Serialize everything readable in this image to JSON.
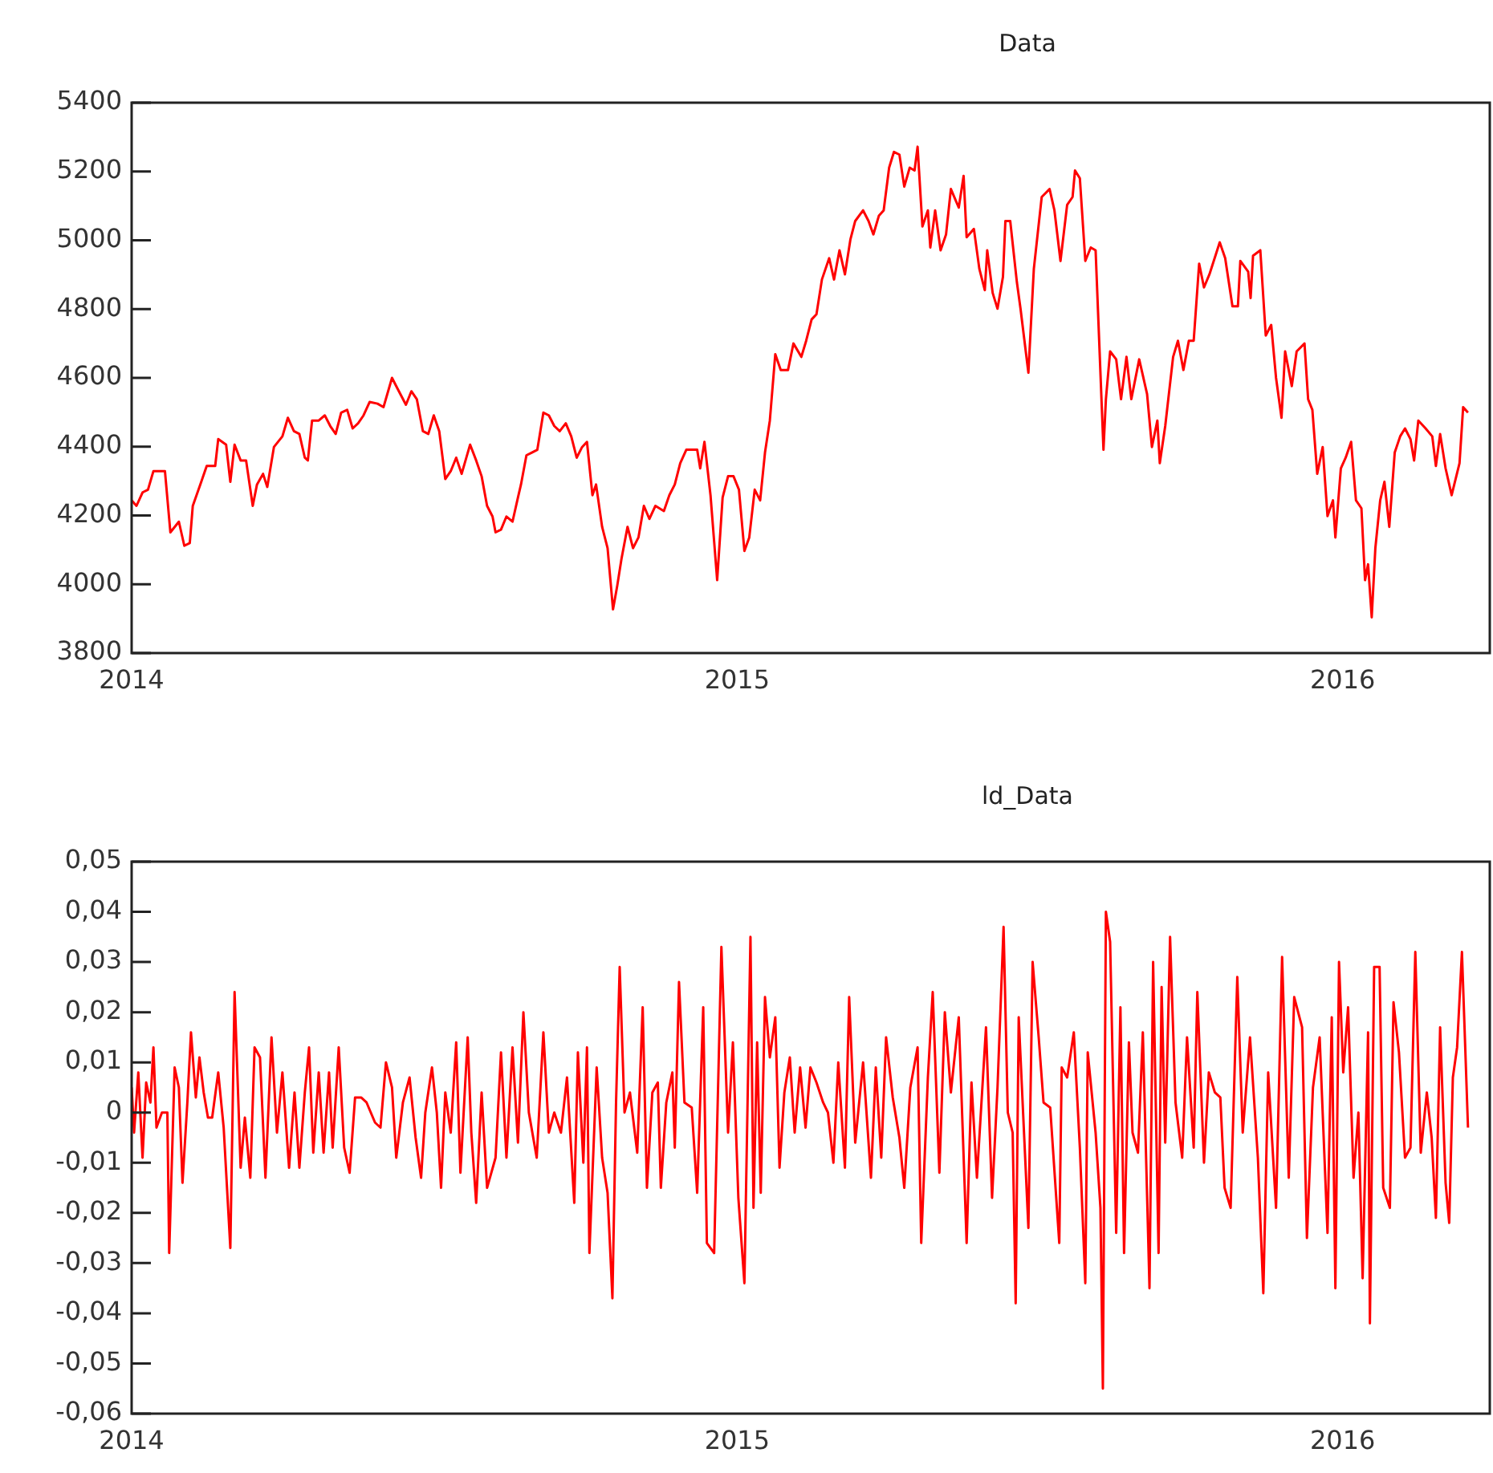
{
  "chart_data": [
    {
      "type": "line",
      "title": "Data",
      "xlim": [
        2014,
        2016.243
      ],
      "xticks": [
        2014,
        2015,
        2016
      ],
      "ylim": [
        3800,
        5400
      ],
      "yticks": [
        3800,
        4000,
        4200,
        4400,
        4600,
        4800,
        5000,
        5200,
        5400
      ],
      "x": [
        2014.0,
        2014.008,
        2014.018,
        2014.027,
        2014.036,
        2014.055,
        2014.064,
        2014.078,
        2014.087,
        2014.096,
        2014.101,
        2014.115,
        2014.124,
        2014.138,
        2014.143,
        2014.156,
        2014.163,
        2014.17,
        2014.18,
        2014.189,
        2014.2,
        2014.207,
        2014.217,
        2014.224,
        2014.235,
        2014.249,
        2014.258,
        2014.268,
        2014.277,
        2014.286,
        2014.291,
        2014.298,
        2014.309,
        2014.319,
        2014.328,
        2014.337,
        2014.346,
        2014.356,
        2014.365,
        2014.374,
        2014.383,
        2014.393,
        2014.406,
        2014.416,
        2014.43,
        2014.439,
        2014.453,
        2014.462,
        2014.471,
        2014.481,
        2014.49,
        2014.499,
        2014.508,
        2014.518,
        2014.527,
        2014.536,
        2014.545,
        2014.559,
        2014.569,
        2014.578,
        2014.587,
        2014.596,
        2014.601,
        2014.61,
        2014.619,
        2014.629,
        2014.638,
        2014.643,
        2014.652,
        2014.661,
        2014.67,
        2014.68,
        2014.689,
        2014.698,
        2014.707,
        2014.717,
        2014.726,
        2014.735,
        2014.744,
        2014.752,
        2014.761,
        2014.767,
        2014.777,
        2014.786,
        2014.795,
        2014.802,
        2014.809,
        2014.819,
        2014.828,
        2014.837,
        2014.846,
        2014.855,
        2014.865,
        2014.879,
        2014.888,
        2014.897,
        2014.906,
        2014.916,
        2014.934,
        2014.939,
        2014.946,
        2014.956,
        2014.967,
        2014.976,
        2014.985,
        2014.994,
        2015.003,
        2015.012,
        2015.02,
        2015.029,
        2015.038,
        2015.046,
        2015.054,
        2015.063,
        2015.072,
        2015.084,
        2015.093,
        2015.106,
        2015.114,
        2015.123,
        2015.131,
        2015.14,
        2015.152,
        2015.16,
        2015.169,
        2015.178,
        2015.187,
        2015.195,
        2015.208,
        2015.217,
        2015.225,
        2015.234,
        2015.242,
        2015.251,
        2015.259,
        2015.268,
        2015.276,
        2015.285,
        2015.293,
        2015.298,
        2015.306,
        2015.315,
        2015.319,
        2015.327,
        2015.336,
        2015.345,
        2015.353,
        2015.366,
        2015.374,
        2015.379,
        2015.391,
        2015.4,
        2015.409,
        2015.413,
        2015.422,
        2015.43,
        2015.439,
        2015.443,
        2015.451,
        2015.462,
        2015.468,
        2015.481,
        2015.49,
        2015.503,
        2015.516,
        2015.524,
        2015.534,
        2015.545,
        2015.554,
        2015.558,
        2015.566,
        2015.575,
        2015.584,
        2015.592,
        2015.605,
        2015.609,
        2015.616,
        2015.626,
        2015.634,
        2015.643,
        2015.651,
        2015.664,
        2015.677,
        2015.685,
        2015.694,
        2015.698,
        2015.707,
        2015.72,
        2015.728,
        2015.737,
        2015.746,
        2015.754,
        2015.763,
        2015.771,
        2015.78,
        2015.797,
        2015.806,
        2015.818,
        2015.827,
        2015.831,
        2015.844,
        2015.848,
        2015.852,
        2015.864,
        2015.873,
        2015.882,
        2015.89,
        2015.899,
        2015.905,
        2015.916,
        2015.924,
        2015.937,
        2015.943,
        2015.95,
        2015.958,
        2015.967,
        2015.975,
        2015.984,
        2015.988,
        2015.997,
        2016.005,
        2016.014,
        2016.022,
        2016.031,
        2016.037,
        2016.042,
        2016.048,
        2016.054,
        2016.062,
        2016.069,
        2016.077,
        2016.086,
        2016.095,
        2016.103,
        2016.112,
        2016.118,
        2016.125,
        2016.137,
        2016.148,
        2016.154,
        2016.161,
        2016.17,
        2016.18,
        2016.193,
        2016.199,
        2016.207
      ],
      "series": [
        {
          "color": "#ff0000",
          "values": [
            4244,
            4228,
            4267,
            4275,
            4329,
            4329,
            4151,
            4182,
            4112,
            4120,
            4228,
            4298,
            4344,
            4344,
            4422,
            4406,
            4298,
            4406,
            4360,
            4360,
            4228,
            4290,
            4321,
            4283,
            4399,
            4430,
            4484,
            4445,
            4437,
            4368,
            4360,
            4476,
            4476,
            4491,
            4460,
            4437,
            4499,
            4507,
            4453,
            4468,
            4491,
            4530,
            4525,
            4515,
            4600,
            4569,
            4522,
            4561,
            4538,
            4445,
            4437,
            4491,
            4445,
            4306,
            4329,
            4368,
            4321,
            4406,
            4360,
            4314,
            4228,
            4197,
            4151,
            4159,
            4197,
            4182,
            4252,
            4290,
            4375,
            4383,
            4391,
            4499,
            4491,
            4460,
            4445,
            4468,
            4430,
            4368,
            4399,
            4414,
            4259,
            4290,
            4167,
            4105,
            3927,
            3996,
            4074,
            4167,
            4105,
            4136,
            4228,
            4190,
            4228,
            4213,
            4259,
            4290,
            4352,
            4391,
            4391,
            4337,
            4414,
            4259,
            4012,
            4252,
            4314,
            4314,
            4275,
            4097,
            4136,
            4275,
            4244,
            4383,
            4476,
            4669,
            4623,
            4623,
            4700,
            4661,
            4708,
            4770,
            4785,
            4886,
            4948,
            4886,
            4971,
            4901,
            5002,
            5056,
            5087,
            5056,
            5017,
            5071,
            5087,
            5211,
            5257,
            5249,
            5156,
            5211,
            5203,
            5272,
            5040,
            5087,
            4979,
            5087,
            4971,
            5017,
            5149,
            5095,
            5187,
            5009,
            5033,
            4917,
            4855,
            4971,
            4847,
            4801,
            4894,
            5056,
            5056,
            4878,
            4801,
            4615,
            4917,
            5126,
            5149,
            5087,
            4940,
            5103,
            5126,
            5203,
            5180,
            4940,
            4979,
            4971,
            4391,
            4538,
            4677,
            4654,
            4538,
            4661,
            4538,
            4654,
            4553,
            4399,
            4476,
            4352,
            4460,
            4661,
            4708,
            4623,
            4708,
            4708,
            4932,
            4863,
            4901,
            4994,
            4948,
            4808,
            4808,
            4940,
            4909,
            4832,
            4955,
            4971,
            4723,
            4754,
            4600,
            4484,
            4677,
            4576,
            4677,
            4700,
            4538,
            4507,
            4321,
            4399,
            4198,
            4244,
            4136,
            4337,
            4368,
            4414,
            4244,
            4221,
            4012,
            4058,
            3904,
            4105,
            4244,
            4298,
            4167,
            4383,
            4430,
            4453,
            4422,
            4360,
            4476,
            4453,
            4430,
            4344,
            4437,
            4337,
            4259,
            4352,
            4515,
            4499
          ]
        }
      ]
    },
    {
      "type": "line",
      "title": "ld_Data",
      "xlim": [
        2014,
        2016.243
      ],
      "xticks": [
        2014,
        2015,
        2016
      ],
      "ylim": [
        -0.06,
        0.05
      ],
      "yticks": [
        {
          "value": -0.06,
          "label": "-0,06"
        },
        {
          "value": -0.05,
          "label": "-0,05"
        },
        {
          "value": -0.04,
          "label": "-0,04"
        },
        {
          "value": -0.03,
          "label": "-0,03"
        },
        {
          "value": -0.02,
          "label": "-0,02"
        },
        {
          "value": -0.01,
          "label": "-0,01"
        },
        0,
        {
          "value": 0.01,
          "label": "0,01"
        },
        {
          "value": 0.02,
          "label": "0,02"
        },
        {
          "value": 0.03,
          "label": "0,03"
        },
        {
          "value": 0.04,
          "label": "0,04"
        },
        {
          "value": 0.05,
          "label": "0,05"
        }
      ],
      "x": [
        2014.0,
        2014.004,
        2014.011,
        2014.018,
        2014.024,
        2014.031,
        2014.036,
        2014.041,
        2014.05,
        2014.059,
        2014.062,
        2014.071,
        2014.078,
        2014.084,
        2014.092,
        2014.098,
        2014.106,
        2014.112,
        2014.119,
        2014.126,
        2014.133,
        2014.143,
        2014.152,
        2014.163,
        2014.17,
        2014.18,
        2014.187,
        2014.196,
        2014.203,
        2014.212,
        2014.221,
        2014.231,
        2014.24,
        2014.249,
        2014.26,
        2014.269,
        2014.277,
        2014.286,
        2014.293,
        2014.3,
        2014.309,
        2014.317,
        2014.326,
        2014.332,
        2014.342,
        2014.351,
        2014.36,
        2014.369,
        2014.379,
        2014.388,
        2014.402,
        2014.411,
        2014.42,
        2014.43,
        2014.437,
        2014.448,
        2014.459,
        2014.469,
        2014.478,
        2014.485,
        2014.496,
        2014.504,
        2014.511,
        2014.518,
        2014.527,
        2014.536,
        2014.543,
        2014.555,
        2014.561,
        2014.569,
        2014.578,
        2014.587,
        2014.601,
        2014.61,
        2014.619,
        2014.629,
        2014.638,
        2014.647,
        2014.656,
        2014.669,
        2014.68,
        2014.689,
        2014.698,
        2014.709,
        2014.719,
        2014.731,
        2014.737,
        2014.746,
        2014.752,
        2014.756,
        2014.768,
        2014.777,
        2014.786,
        2014.794,
        2014.8,
        2014.806,
        2014.814,
        2014.823,
        2014.835,
        2014.844,
        2014.851,
        2014.86,
        2014.869,
        2014.874,
        2014.883,
        2014.893,
        2014.897,
        2014.904,
        2014.913,
        2014.925,
        2014.934,
        2014.944,
        2014.95,
        2014.962,
        2014.974,
        2014.985,
        2014.993,
        2015.002,
        2015.012,
        2015.022,
        2015.027,
        2015.033,
        2015.039,
        2015.046,
        2015.054,
        2015.055,
        2015.063,
        2015.07,
        2015.078,
        2015.087,
        2015.095,
        2015.104,
        2015.113,
        2015.121,
        2015.131,
        2015.142,
        2015.15,
        2015.159,
        2015.167,
        2015.178,
        2015.185,
        2015.195,
        2015.208,
        2015.221,
        2015.229,
        2015.238,
        2015.246,
        2015.257,
        2015.268,
        2015.276,
        2015.286,
        2015.298,
        2015.304,
        2015.315,
        2015.323,
        2015.334,
        2015.343,
        2015.353,
        2015.366,
        2015.379,
        2015.387,
        2015.396,
        2015.411,
        2015.421,
        2015.43,
        2015.44,
        2015.447,
        2015.455,
        2015.46,
        2015.465,
        2015.481,
        2015.488,
        2015.498,
        2015.506,
        2015.517,
        2015.532,
        2015.536,
        2015.545,
        2015.556,
        2015.566,
        2015.575,
        2015.579,
        2015.592,
        2015.6,
        2015.604,
        2015.609,
        2015.616,
        2015.626,
        2015.633,
        2015.639,
        2015.647,
        2015.653,
        2015.662,
        2015.67,
        2015.681,
        2015.687,
        2015.696,
        2015.701,
        2015.707,
        2015.715,
        2015.724,
        2015.735,
        2015.743,
        2015.754,
        2015.76,
        2015.771,
        2015.779,
        2015.789,
        2015.798,
        2015.805,
        2015.815,
        2015.826,
        2015.835,
        2015.847,
        2015.86,
        2015.869,
        2015.877,
        2015.89,
        2015.9,
        2015.911,
        2015.92,
        2015.933,
        2015.941,
        2015.951,
        2015.962,
        2015.975,
        2015.982,
        2015.988,
        2015.994,
        2016.001,
        2016.009,
        2016.018,
        2016.026,
        2016.033,
        2016.042,
        2016.045,
        2016.052,
        2016.061,
        2016.067,
        2016.078,
        2016.084,
        2016.093,
        2016.103,
        2016.112,
        2016.12,
        2016.129,
        2016.139,
        2016.147,
        2016.154,
        2016.161,
        2016.17,
        2016.176,
        2016.182,
        2016.189,
        2016.197,
        2016.207
      ],
      "series": [
        {
          "color": "#ff0000",
          "values": [
            0.005,
            -0.004,
            0.008,
            -0.009,
            0.006,
            0.002,
            0.013,
            -0.003,
            0,
            0,
            -0.028,
            0.009,
            0.005,
            -0.014,
            0.002,
            0.016,
            0.003,
            0.011,
            0.004,
            -0.001,
            -0.001,
            0.008,
            -0.003,
            -0.027,
            0.024,
            -0.011,
            -0.001,
            -0.013,
            0.013,
            0.011,
            -0.013,
            0.015,
            -0.004,
            0.008,
            -0.011,
            0.004,
            -0.011,
            0.004,
            0.013,
            -0.008,
            0.008,
            -0.008,
            0.008,
            -0.007,
            0.013,
            -0.007,
            -0.012,
            0.003,
            0.003,
            0.002,
            -0.002,
            -0.003,
            0.01,
            0.005,
            -0.009,
            0.002,
            0.007,
            -0.005,
            -0.013,
            0,
            0.009,
            0,
            -0.015,
            0.004,
            -0.004,
            0.014,
            -0.012,
            0.015,
            -0.004,
            -0.018,
            0.004,
            -0.015,
            -0.009,
            0.012,
            -0.009,
            0.013,
            -0.006,
            0.02,
            0,
            -0.009,
            0.016,
            -0.004,
            0,
            -0.004,
            0.007,
            -0.018,
            0.012,
            -0.01,
            0.013,
            -0.028,
            0.009,
            -0.009,
            -0.016,
            -0.037,
            0.002,
            0.029,
            0,
            0.004,
            -0.008,
            0.021,
            -0.015,
            0.004,
            0.006,
            -0.015,
            0.002,
            0.008,
            -0.007,
            0.026,
            0.002,
            0.001,
            -0.016,
            0.021,
            -0.026,
            -0.028,
            0.033,
            -0.004,
            0.014,
            -0.017,
            -0.034,
            0.035,
            -0.019,
            0.014,
            -0.016,
            0.023,
            0.011,
            0.011,
            0.019,
            -0.011,
            0.004,
            0.011,
            -0.004,
            0.009,
            -0.003,
            0.009,
            0.006,
            0.002,
            0,
            -0.01,
            0.01,
            -0.011,
            0.023,
            -0.006,
            0.01,
            -0.013,
            0.009,
            -0.009,
            0.015,
            0.003,
            -0.005,
            -0.015,
            0.005,
            0.013,
            -0.026,
            0.007,
            0.024,
            -0.012,
            0.02,
            0.004,
            0.019,
            -0.026,
            0.006,
            -0.013,
            0.017,
            -0.017,
            0.005,
            0.037,
            0,
            -0.004,
            -0.038,
            0.019,
            -0.023,
            0.03,
            0.015,
            0.002,
            0.001,
            -0.026,
            0.009,
            0.007,
            0.016,
            -0.007,
            -0.034,
            0.012,
            -0.004,
            -0.019,
            -0.055,
            0.04,
            0.034,
            -0.024,
            0.021,
            -0.028,
            0.014,
            -0.004,
            -0.008,
            0.016,
            -0.035,
            0.03,
            -0.028,
            0.025,
            -0.006,
            0.035,
            0.002,
            -0.009,
            0.015,
            -0.007,
            0.024,
            -0.01,
            0.008,
            0.004,
            0.003,
            -0.015,
            -0.019,
            0.027,
            -0.004,
            0.015,
            -0.009,
            -0.036,
            0.008,
            -0.019,
            0.031,
            -0.013,
            0.023,
            0.017,
            -0.025,
            0.005,
            0.015,
            -0.024,
            0.019,
            -0.035,
            0.03,
            0.008,
            0.021,
            -0.013,
            0,
            -0.033,
            0.016,
            -0.042,
            0.029,
            0.029,
            -0.015,
            -0.019,
            0.022,
            0.012,
            -0.009,
            -0.007,
            0.032,
            -0.008,
            0.004,
            -0.005,
            -0.021,
            0.017,
            -0.014,
            -0.022,
            0.007,
            0.013,
            0.032,
            -0.003
          ]
        }
      ]
    }
  ]
}
